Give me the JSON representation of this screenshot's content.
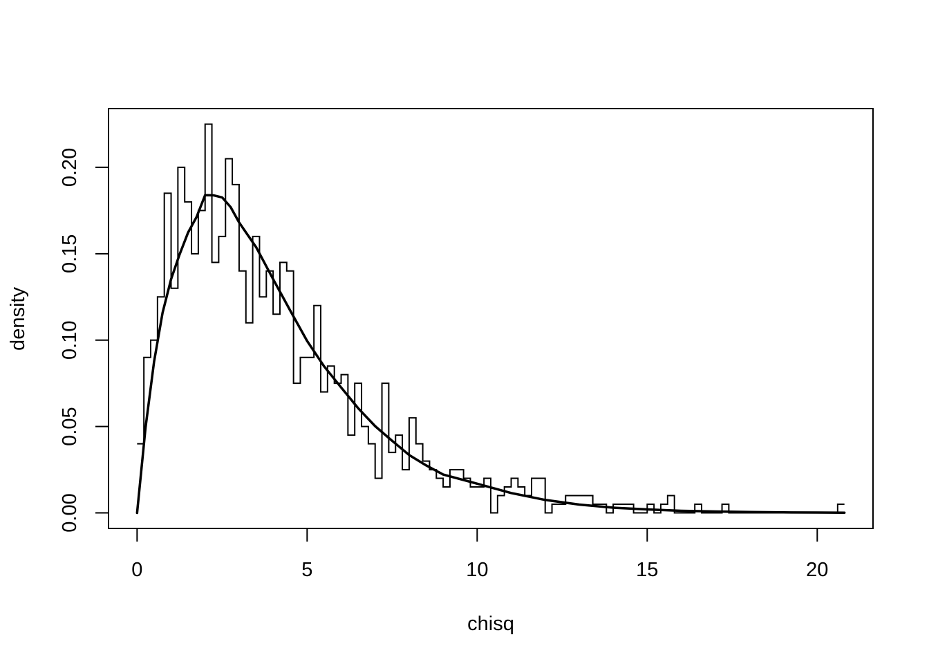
{
  "chart_data": {
    "type": "line",
    "title": "",
    "xlabel": "chisq",
    "ylabel": "density",
    "xlim": [
      -0.84,
      21.64
    ],
    "ylim": [
      -0.009,
      0.234
    ],
    "x_ticks": [
      0,
      5,
      10,
      15,
      20
    ],
    "x_tick_labels": [
      "0",
      "5",
      "10",
      "15",
      "20"
    ],
    "y_ticks": [
      0.0,
      0.05,
      0.1,
      0.15,
      0.2
    ],
    "y_tick_labels": [
      "0.00",
      "0.05",
      "0.10",
      "0.15",
      "0.20"
    ],
    "grid": false,
    "legend": "none",
    "series": [
      {
        "style": "step",
        "x": [
          0.0,
          0.2,
          0.4,
          0.6,
          0.8,
          1.0,
          1.2,
          1.4,
          1.6,
          1.8,
          2.0,
          2.2,
          2.4,
          2.6,
          2.8,
          3.0,
          3.2,
          3.4,
          3.6,
          3.8,
          4.0,
          4.2,
          4.4,
          4.6,
          4.8,
          5.0,
          5.2,
          5.4,
          5.6,
          5.8,
          6.0,
          6.2,
          6.4,
          6.6,
          6.8,
          7.0,
          7.2,
          7.4,
          7.6,
          7.8,
          8.0,
          8.2,
          8.4,
          8.6,
          8.8,
          9.0,
          9.2,
          9.4,
          9.6,
          9.8,
          10.0,
          10.2,
          10.4,
          10.6,
          10.8,
          11.0,
          11.2,
          11.4,
          11.6,
          11.8,
          12.0,
          12.2,
          12.4,
          12.6,
          12.8,
          13.0,
          13.2,
          13.4,
          13.6,
          13.8,
          14.0,
          14.2,
          14.4,
          14.6,
          14.8,
          15.0,
          15.2,
          15.4,
          15.6,
          15.8,
          16.0,
          16.2,
          16.4,
          16.6,
          16.8,
          17.0,
          17.2,
          17.4,
          17.6,
          17.8,
          18.0,
          18.2,
          18.4,
          18.6,
          18.8,
          19.0,
          19.2,
          19.4,
          19.6,
          19.8,
          20.0,
          20.2,
          20.4,
          20.6,
          20.8
        ],
        "y": [
          0.04,
          0.09,
          0.1,
          0.125,
          0.185,
          0.13,
          0.2,
          0.18,
          0.15,
          0.175,
          0.225,
          0.145,
          0.16,
          0.205,
          0.19,
          0.14,
          0.11,
          0.16,
          0.125,
          0.14,
          0.115,
          0.145,
          0.14,
          0.075,
          0.09,
          0.09,
          0.12,
          0.07,
          0.085,
          0.075,
          0.08,
          0.045,
          0.075,
          0.05,
          0.04,
          0.02,
          0.075,
          0.035,
          0.045,
          0.025,
          0.055,
          0.04,
          0.03,
          0.025,
          0.02,
          0.015,
          0.025,
          0.025,
          0.02,
          0.015,
          0.015,
          0.02,
          0.0,
          0.01,
          0.015,
          0.02,
          0.015,
          0.01,
          0.02,
          0.02,
          0.0,
          0.005,
          0.005,
          0.01,
          0.01,
          0.01,
          0.01,
          0.005,
          0.005,
          0.0,
          0.005,
          0.005,
          0.005,
          0.0,
          0.0,
          0.005,
          0.0,
          0.005,
          0.01,
          0.0,
          0.0,
          0.0,
          0.005,
          0.0,
          0.0,
          0.0,
          0.005,
          0.0,
          0.0,
          0.0,
          0.0,
          0.0,
          0.0,
          0.0,
          0.0,
          0.0,
          0.0,
          0.0,
          0.0,
          0.0,
          0.0,
          0.0,
          0.0,
          0.005,
          0.005
        ]
      },
      {
        "style": "curve",
        "x": [
          0.0,
          0.25,
          0.5,
          0.75,
          1.0,
          1.25,
          1.5,
          1.75,
          2.0,
          2.25,
          2.5,
          2.75,
          3.0,
          3.5,
          4.0,
          4.5,
          5.0,
          5.5,
          6.0,
          6.5,
          7.0,
          7.5,
          8.0,
          8.5,
          9.0,
          10.0,
          11.0,
          12.0,
          13.0,
          14.0,
          15.0,
          16.0,
          17.0,
          18.0,
          19.0,
          20.0,
          20.8
        ],
        "y": [
          0.0,
          0.0496,
          0.0876,
          0.1159,
          0.1353,
          0.1496,
          0.1623,
          0.1713,
          0.1839,
          0.1838,
          0.1826,
          0.177,
          0.1681,
          0.1538,
          0.1353,
          0.1172,
          0.0995,
          0.0848,
          0.0726,
          0.0606,
          0.0502,
          0.0417,
          0.0335,
          0.0275,
          0.0222,
          0.0169,
          0.0115,
          0.0075,
          0.0048,
          0.003,
          0.002,
          0.0012,
          0.0008,
          0.0005,
          0.0003,
          0.0002,
          0.0001
        ]
      }
    ]
  }
}
